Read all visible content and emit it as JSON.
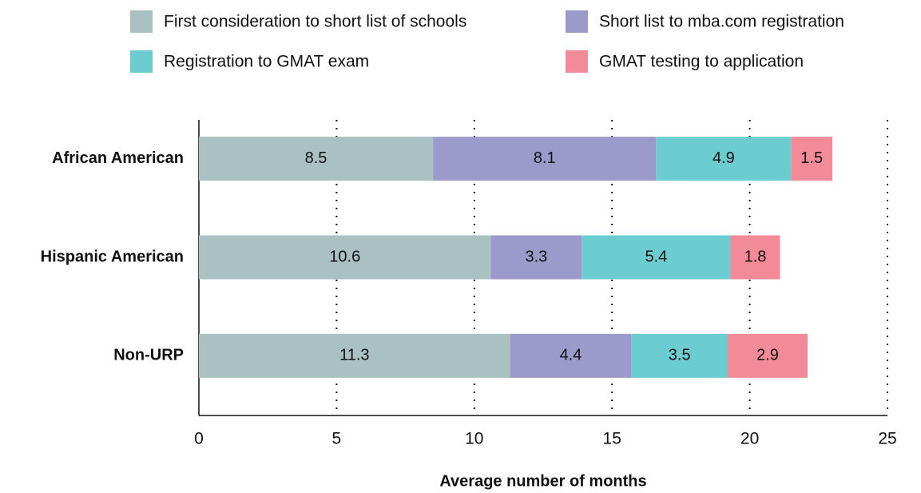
{
  "chart_data": {
    "type": "bar",
    "orientation": "horizontal",
    "stacked": true,
    "x_label": "Average number of months",
    "categories": [
      "African American",
      "Hispanic American",
      "Non-URP"
    ],
    "series": [
      {
        "name": "First consideration to short list of schools",
        "color": "#a9c1c1",
        "values": [
          8.5,
          10.6,
          11.3
        ]
      },
      {
        "name": "Short list to mba.com registration",
        "color": "#9b9acb",
        "values": [
          8.1,
          3.3,
          4.4
        ]
      },
      {
        "name": "Registration to GMAT exam",
        "color": "#6ccdd1",
        "values": [
          4.9,
          5.4,
          3.5
        ]
      },
      {
        "name": "GMAT testing to application",
        "color": "#f38a97",
        "values": [
          1.5,
          1.8,
          2.9
        ]
      }
    ],
    "xlim": [
      0,
      25
    ],
    "xticks": [
      0,
      5,
      10,
      15,
      20,
      25
    ],
    "grid": true
  }
}
